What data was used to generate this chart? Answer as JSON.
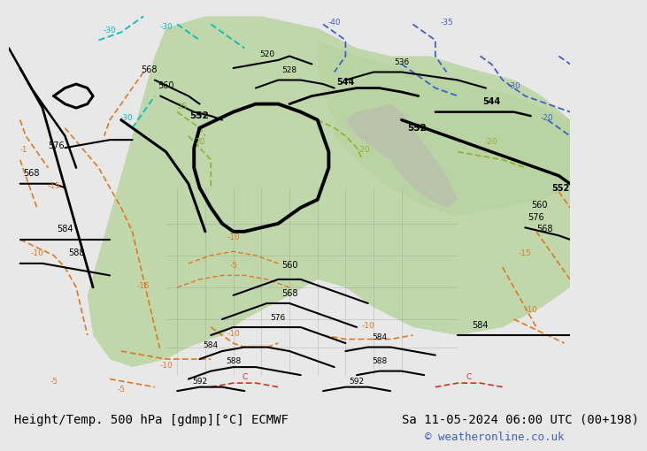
{
  "title_left": "Height/Temp. 500 hPa [gdmp][°C] ECMWF",
  "title_right": "Sa 11-05-2024 06:00 UTC (00+198)",
  "copyright": "© weatheronline.co.uk",
  "bg_color": "#e8e8e8",
  "map_bg": "#f0f0f0",
  "land_color": "#d4d4c8",
  "green_area": "#b8d4a0",
  "bottom_bar_color": "#ffffff",
  "contour_black_color": "#000000",
  "contour_orange_color": "#e07820",
  "contour_green_color": "#90b030",
  "contour_cyan_color": "#00c0c0",
  "contour_blue_color": "#4060d0",
  "contour_red_color": "#d03020",
  "label_color_black": "#000000",
  "label_color_orange": "#e07820",
  "label_color_green": "#90b030",
  "label_color_cyan": "#00b0b0",
  "label_color_blue": "#4060c0",
  "label_color_red": "#c02010",
  "font_size_bottom": 10,
  "fig_width": 6.34,
  "fig_height": 4.9
}
